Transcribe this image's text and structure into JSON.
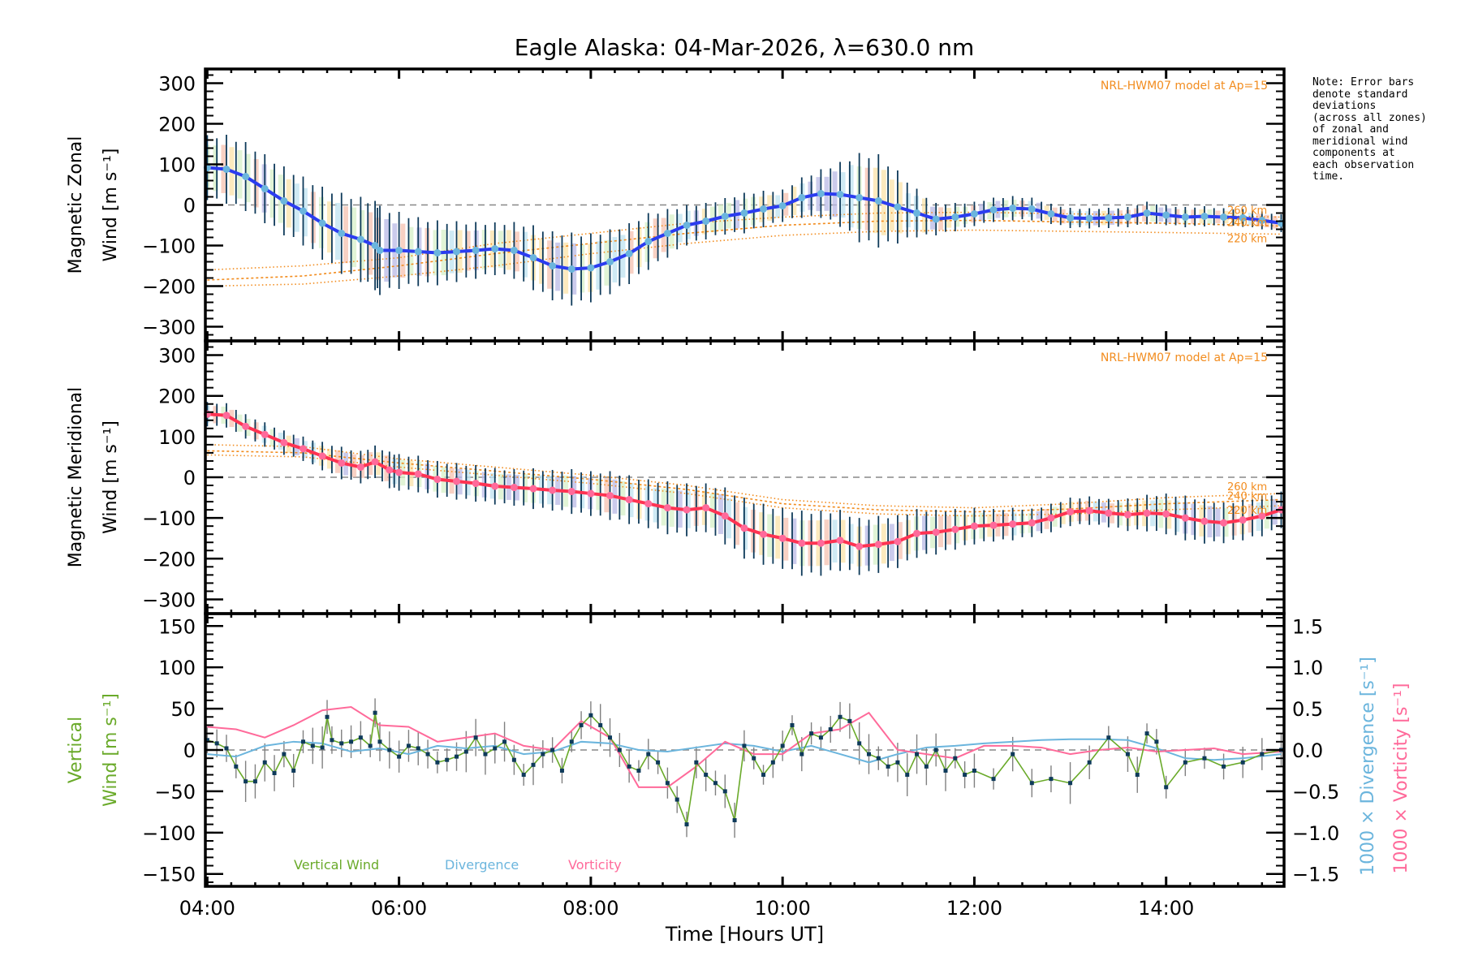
{
  "chart_data": [
    {
      "type": "line",
      "panel": "zonal",
      "title": "Eagle Alaska: 04-Mar-2026, λ=630.0 nm",
      "ylabel_line1": "Magnetic Zonal",
      "ylabel_line2": "Wind [m s⁻¹]",
      "xlim": [
        3.98,
        15.23
      ],
      "ylim": [
        -335,
        335
      ],
      "yticks": [
        300,
        200,
        100,
        0,
        -100,
        -200,
        -300
      ],
      "ytick_labels": [
        "300",
        "200",
        "100",
        "0",
        "−100",
        "−200",
        "−300"
      ],
      "model_label": "NRL-HWM07 model at Ap=15",
      "model_altitude_labels": [
        "260 km",
        "240 km",
        "220 km"
      ],
      "series": [
        {
          "name": "Zonal wind (mean)",
          "color": "#2b3cf0",
          "x": [
            4.0,
            4.2,
            4.4,
            4.6,
            4.8,
            5.0,
            5.2,
            5.4,
            5.6,
            5.75,
            5.8,
            6.0,
            6.2,
            6.4,
            6.6,
            6.8,
            7.0,
            7.2,
            7.4,
            7.6,
            7.8,
            8.0,
            8.2,
            8.4,
            8.6,
            8.8,
            9.0,
            9.2,
            9.4,
            9.6,
            9.8,
            10.0,
            10.2,
            10.4,
            10.6,
            10.8,
            11.0,
            11.2,
            11.4,
            11.6,
            11.8,
            12.0,
            12.2,
            12.4,
            12.6,
            12.8,
            13.0,
            13.2,
            13.4,
            13.6,
            13.8,
            14.0,
            14.2,
            14.4,
            14.6,
            14.8,
            15.0,
            15.2
          ],
          "y": [
            92,
            88,
            70,
            40,
            10,
            -15,
            -45,
            -70,
            -85,
            -100,
            -112,
            -112,
            -115,
            -118,
            -115,
            -112,
            -108,
            -112,
            -130,
            -150,
            -158,
            -155,
            -140,
            -120,
            -90,
            -70,
            -50,
            -40,
            -28,
            -20,
            -10,
            -2,
            18,
            28,
            26,
            18,
            10,
            -5,
            -20,
            -35,
            -30,
            -22,
            -12,
            -8,
            -10,
            -22,
            -32,
            -33,
            -32,
            -30,
            -20,
            -25,
            -30,
            -28,
            -30,
            -32,
            -38,
            -45
          ]
        },
        {
          "name": "HWM07 260 km",
          "color": "#f28c1e",
          "style": "dotted",
          "x": [
            4.0,
            5.0,
            6.0,
            7.0,
            8.0,
            9.0,
            10.0,
            11.0,
            12.0,
            13.0,
            14.0,
            15.2
          ],
          "y": [
            -160,
            -150,
            -130,
            -95,
            -70,
            -45,
            -30,
            -20,
            -18,
            -22,
            -25,
            -30
          ]
        },
        {
          "name": "HWM07 240 km",
          "color": "#f28c1e",
          "style": "dotted",
          "x": [
            4.0,
            5.0,
            6.0,
            7.0,
            8.0,
            9.0,
            10.0,
            11.0,
            12.0,
            13.0,
            14.0,
            15.2
          ],
          "y": [
            -185,
            -175,
            -150,
            -120,
            -95,
            -70,
            -50,
            -40,
            -38,
            -42,
            -45,
            -52
          ]
        },
        {
          "name": "HWM07 220 km",
          "color": "#f28c1e",
          "style": "dotted",
          "x": [
            4.0,
            5.0,
            6.0,
            7.0,
            8.0,
            9.0,
            10.0,
            11.0,
            12.0,
            13.0,
            14.0,
            15.2
          ],
          "y": [
            -200,
            -195,
            -175,
            -150,
            -120,
            -95,
            -75,
            -65,
            -62,
            -65,
            -68,
            -72
          ]
        }
      ],
      "error_bar_half_width": [
        80,
        85,
        85,
        85,
        85,
        85,
        90,
        100,
        105,
        110,
        110,
        95,
        85,
        80,
        75,
        70,
        65,
        70,
        80,
        85,
        90,
        85,
        80,
        75,
        70,
        60,
        50,
        45,
        45,
        50,
        45,
        40,
        50,
        60,
        80,
        110,
        115,
        90,
        60,
        40,
        35,
        30,
        30,
        30,
        28,
        25,
        25,
        25,
        25,
        25,
        28,
        25,
        25,
        25,
        22,
        22,
        22,
        22
      ]
    },
    {
      "type": "line",
      "panel": "meridional",
      "ylabel_line1": "Magnetic Meridional",
      "ylabel_line2": "Wind [m s⁻¹]",
      "xlim": [
        3.98,
        15.23
      ],
      "ylim": [
        -335,
        335
      ],
      "yticks": [
        300,
        200,
        100,
        0,
        -100,
        -200,
        -300
      ],
      "ytick_labels": [
        "300",
        "200",
        "100",
        "0",
        "−100",
        "−200",
        "−300"
      ],
      "model_label": "NRL-HWM07 model at Ap=15",
      "model_altitude_labels": [
        "260 km",
        "240 km",
        "220 km"
      ],
      "series": [
        {
          "name": "Meridional wind (mean)",
          "color": "#ff3352",
          "x": [
            4.0,
            4.2,
            4.4,
            4.6,
            4.8,
            5.0,
            5.2,
            5.4,
            5.6,
            5.75,
            5.9,
            6.0,
            6.2,
            6.4,
            6.6,
            6.8,
            7.0,
            7.2,
            7.4,
            7.6,
            7.8,
            8.0,
            8.2,
            8.4,
            8.6,
            8.8,
            9.0,
            9.2,
            9.4,
            9.6,
            9.8,
            10.0,
            10.2,
            10.4,
            10.6,
            10.8,
            11.0,
            11.2,
            11.4,
            11.6,
            11.8,
            12.0,
            12.2,
            12.4,
            12.6,
            12.8,
            13.0,
            13.2,
            13.4,
            13.6,
            13.8,
            14.0,
            14.2,
            14.4,
            14.6,
            14.8,
            15.0,
            15.2
          ],
          "y": [
            155,
            152,
            125,
            105,
            85,
            70,
            52,
            35,
            25,
            38,
            18,
            12,
            8,
            -5,
            -10,
            -15,
            -22,
            -25,
            -28,
            -32,
            -35,
            -40,
            -45,
            -55,
            -65,
            -75,
            -80,
            -75,
            -95,
            -125,
            -140,
            -150,
            -162,
            -162,
            -155,
            -170,
            -165,
            -158,
            -138,
            -135,
            -128,
            -120,
            -118,
            -115,
            -112,
            -100,
            -85,
            -82,
            -88,
            -92,
            -88,
            -90,
            -100,
            -108,
            -112,
            -105,
            -95,
            -80
          ]
        },
        {
          "name": "HWM07 260 km",
          "color": "#f28c1e",
          "style": "dotted",
          "x": [
            4.0,
            5.0,
            6.0,
            7.0,
            8.0,
            9.0,
            10.0,
            11.0,
            12.0,
            13.0,
            14.0,
            15.2
          ],
          "y": [
            80,
            75,
            45,
            25,
            5,
            -20,
            -55,
            -70,
            -75,
            -65,
            -50,
            -40
          ]
        },
        {
          "name": "HWM07 240 km",
          "color": "#f28c1e",
          "style": "dotted",
          "x": [
            4.0,
            5.0,
            6.0,
            7.0,
            8.0,
            9.0,
            10.0,
            11.0,
            12.0,
            13.0,
            14.0,
            15.2
          ],
          "y": [
            65,
            60,
            35,
            15,
            -5,
            -30,
            -65,
            -80,
            -85,
            -78,
            -65,
            -55
          ]
        },
        {
          "name": "HWM07 220 km",
          "color": "#f28c1e",
          "style": "dotted",
          "x": [
            4.0,
            5.0,
            6.0,
            7.0,
            8.0,
            9.0,
            10.0,
            11.0,
            12.0,
            13.0,
            14.0,
            15.2
          ],
          "y": [
            55,
            50,
            25,
            5,
            -15,
            -40,
            -75,
            -90,
            -95,
            -90,
            -80,
            -70
          ]
        }
      ],
      "error_bar_half_width": [
        30,
        30,
        30,
        30,
        30,
        30,
        35,
        40,
        40,
        40,
        45,
        45,
        45,
        45,
        45,
        45,
        45,
        45,
        50,
        50,
        55,
        55,
        60,
        60,
        60,
        65,
        65,
        60,
        70,
        75,
        75,
        75,
        80,
        80,
        75,
        70,
        70,
        65,
        60,
        55,
        50,
        45,
        40,
        40,
        35,
        35,
        35,
        35,
        35,
        40,
        45,
        50,
        55,
        55,
        50,
        50,
        50,
        45
      ]
    },
    {
      "type": "line",
      "panel": "vertical",
      "ylabel_line1": "Vertical",
      "ylabel_line2": "Wind [m s⁻¹]",
      "right_label_divergence": "1000 × Divergence [s⁻¹]",
      "right_label_vorticity": "1000 × Vorticity [s⁻¹]",
      "xlabel": "Time [Hours UT]",
      "xlim": [
        3.98,
        15.23
      ],
      "xticks": [
        4,
        6,
        8,
        10,
        12,
        14
      ],
      "xtick_labels": [
        "04:00",
        "06:00",
        "08:00",
        "10:00",
        "12:00",
        "14:00"
      ],
      "ylim": [
        -165,
        165
      ],
      "yticks": [
        150,
        100,
        50,
        0,
        -50,
        -100,
        -150
      ],
      "ytick_labels": [
        "150",
        "100",
        "50",
        "0",
        "−50",
        "−100",
        "−150"
      ],
      "y2lim": [
        -1.65,
        1.65
      ],
      "y2ticks": [
        1.5,
        1.0,
        0.5,
        0.0,
        -0.5,
        -1.0,
        -1.5
      ],
      "y2tick_labels": [
        "1.5",
        "1.0",
        "0.5",
        "0.0",
        "−0.5",
        "−1.0",
        "−1.5"
      ],
      "legend": [
        "Vertical Wind",
        "Divergence",
        "Vorticity"
      ],
      "legend_position": "bottom-left",
      "series": [
        {
          "name": "Vertical Wind",
          "color": "#6aaa2a",
          "axis": "left",
          "x": [
            4.0,
            4.1,
            4.2,
            4.3,
            4.4,
            4.5,
            4.6,
            4.7,
            4.8,
            4.9,
            5.0,
            5.1,
            5.2,
            5.25,
            5.3,
            5.4,
            5.5,
            5.6,
            5.7,
            5.75,
            5.8,
            5.9,
            6.0,
            6.1,
            6.2,
            6.3,
            6.4,
            6.5,
            6.6,
            6.7,
            6.8,
            6.9,
            7.0,
            7.1,
            7.2,
            7.3,
            7.4,
            7.5,
            7.6,
            7.7,
            7.8,
            7.9,
            8.0,
            8.1,
            8.2,
            8.3,
            8.4,
            8.5,
            8.6,
            8.7,
            8.8,
            8.9,
            9.0,
            9.1,
            9.2,
            9.3,
            9.4,
            9.5,
            9.6,
            9.7,
            9.8,
            9.9,
            10.0,
            10.1,
            10.2,
            10.3,
            10.4,
            10.5,
            10.6,
            10.7,
            10.8,
            10.9,
            11.0,
            11.1,
            11.2,
            11.3,
            11.4,
            11.5,
            11.6,
            11.7,
            11.8,
            11.9,
            12.0,
            12.2,
            12.4,
            12.6,
            12.8,
            13.0,
            13.2,
            13.4,
            13.6,
            13.7,
            13.8,
            13.9,
            14.0,
            14.2,
            14.4,
            14.6,
            14.8,
            15.0,
            15.2
          ],
          "y": [
            12,
            8,
            2,
            -20,
            -38,
            -38,
            -15,
            -28,
            -5,
            -25,
            10,
            5,
            3,
            40,
            12,
            8,
            10,
            15,
            5,
            45,
            10,
            0,
            -8,
            5,
            2,
            -5,
            -15,
            -12,
            -8,
            -2,
            15,
            -5,
            2,
            10,
            -12,
            -30,
            -18,
            -5,
            0,
            -25,
            10,
            30,
            42,
            30,
            15,
            0,
            -20,
            -25,
            -5,
            -15,
            -40,
            -60,
            -90,
            -15,
            -30,
            -40,
            -50,
            -85,
            5,
            -10,
            -30,
            -15,
            5,
            30,
            -5,
            20,
            15,
            25,
            40,
            35,
            8,
            -5,
            -10,
            -20,
            -15,
            -30,
            -5,
            -20,
            0,
            -25,
            -10,
            -30,
            -25,
            -35,
            -5,
            -40,
            -35,
            -40,
            -15,
            15,
            -5,
            -30,
            20,
            10,
            -45,
            -15,
            -10,
            -20,
            -15,
            -5,
            0
          ]
        },
        {
          "name": "Divergence",
          "color": "#6bb5dd",
          "axis": "right",
          "x": [
            4.0,
            4.3,
            4.6,
            4.9,
            5.2,
            5.5,
            5.8,
            6.1,
            6.4,
            6.7,
            7.0,
            7.3,
            7.6,
            7.9,
            8.2,
            8.5,
            8.8,
            9.1,
            9.4,
            9.7,
            10.0,
            10.3,
            10.6,
            10.9,
            11.2,
            11.5,
            11.8,
            12.1,
            12.4,
            12.7,
            13.0,
            13.3,
            13.6,
            13.9,
            14.2,
            14.5,
            14.8,
            15.2
          ],
          "y": [
            -0.05,
            -0.08,
            0.05,
            0.1,
            0.08,
            -0.02,
            0.02,
            -0.05,
            0.05,
            0.02,
            0.05,
            -0.05,
            -0.02,
            0.1,
            0.08,
            0.0,
            -0.02,
            0.03,
            0.08,
            0.05,
            -0.02,
            0.05,
            -0.05,
            -0.15,
            -0.05,
            0.03,
            0.05,
            0.08,
            0.1,
            0.12,
            0.13,
            0.13,
            0.12,
            0.02,
            -0.1,
            -0.12,
            -0.1,
            -0.05
          ]
        },
        {
          "name": "Vorticity",
          "color": "#ff6a9a",
          "axis": "right",
          "x": [
            4.0,
            4.3,
            4.6,
            4.9,
            5.2,
            5.5,
            5.8,
            6.1,
            6.4,
            6.7,
            7.0,
            7.3,
            7.6,
            7.9,
            8.2,
            8.5,
            8.8,
            9.1,
            9.4,
            9.7,
            10.0,
            10.3,
            10.6,
            10.9,
            11.2,
            11.5,
            11.8,
            12.1,
            12.4,
            12.7,
            13.0,
            13.3,
            13.6,
            13.9,
            14.2,
            14.5,
            14.8,
            15.2
          ],
          "y": [
            0.28,
            0.25,
            0.15,
            0.3,
            0.48,
            0.52,
            0.3,
            0.28,
            0.1,
            0.15,
            0.2,
            0.05,
            0.0,
            0.35,
            0.15,
            -0.45,
            -0.45,
            -0.2,
            0.1,
            -0.05,
            -0.05,
            0.2,
            0.25,
            0.45,
            0.0,
            -0.05,
            -0.1,
            0.05,
            0.05,
            0.03,
            -0.05,
            0.0,
            0.03,
            -0.02,
            0.0,
            0.02,
            -0.05,
            -0.02
          ]
        }
      ]
    }
  ],
  "note_text": "Note: Error bars\ndenote standard\ndeviations\n(across all zones)\nof zonal and\nmeridional wind\ncomponents at\neach observation\ntime."
}
